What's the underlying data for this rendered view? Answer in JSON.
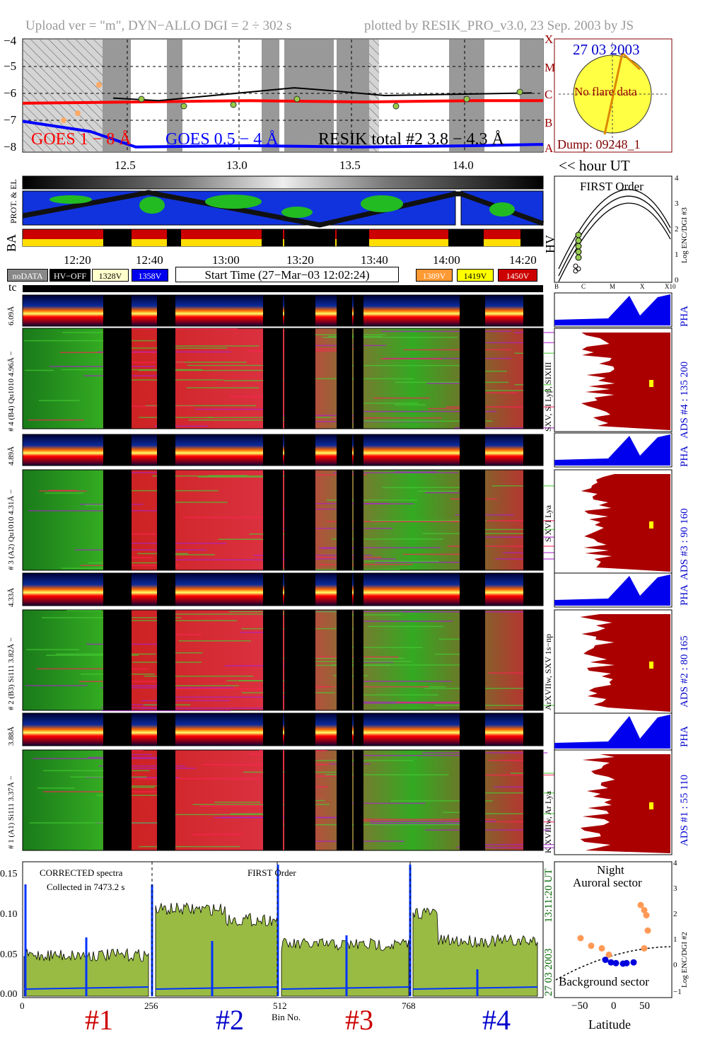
{
  "header": {
    "left": "Upload ver = \"m\", DYN−ALLO DGI =   2 ÷ 302 s",
    "right": "plotted by RESIK_PRO_v3.0, 23 Sep. 2003 by JS"
  },
  "goes": {
    "y_ticks": [
      "−4",
      "−5",
      "−6",
      "−7",
      "−8"
    ],
    "class_labels": [
      "X",
      "M",
      "C",
      "B",
      "A"
    ],
    "x_ticks": [
      "12.5",
      "13.0",
      "13.5",
      "14.0"
    ],
    "legend": [
      {
        "text": "GOES 1 − 8 Å",
        "color": "#ff0000"
      },
      {
        "text": "GOES 0.5 − 4 Å",
        "color": "#0000ff"
      },
      {
        "text": "RESIK total #2  3.8 − 4.3 Å",
        "color": "#000000"
      }
    ],
    "hour_label": "<< hour UT"
  },
  "sun": {
    "date": "27 03 2003",
    "status": "No flare data",
    "dump": "Dump: 09248_1"
  },
  "orbit": {
    "label_prot": "PROT. & EL",
    "label_ba": "BA",
    "label_hv": "HV",
    "time_ticks": [
      "12:20",
      "12:40",
      "13:00",
      "13:20",
      "13:40",
      "14:00",
      "14:20"
    ]
  },
  "legend_bar": {
    "items": [
      {
        "text": "noDATA",
        "bg": "#888888",
        "fg": "#ffffff"
      },
      {
        "text": "HV−OFF",
        "bg": "#000000",
        "fg": "#ffffff"
      },
      {
        "text": "1328V",
        "bg": "#ffffcc",
        "fg": "#000000"
      },
      {
        "text": "1358V",
        "bg": "#0000ee",
        "fg": "#ffffff"
      },
      {
        "text": "1389V",
        "bg": "#ff9933",
        "fg": "#ffffff"
      },
      {
        "text": "1419V",
        "bg": "#ffff00",
        "fg": "#000000"
      },
      {
        "text": "1450V",
        "bg": "#cc0000",
        "fg": "#ffffff"
      }
    ],
    "start_time": "Start Time (27−Mar−03 12:02:24)"
  },
  "first_order": {
    "title": "FIRST Order",
    "axis_label": "Log ENC/DGI #3",
    "y_ticks": [
      "0",
      "1",
      "2",
      "3",
      "4"
    ],
    "x_ticks": [
      "B",
      "C",
      "M",
      "X",
      "X10"
    ]
  },
  "tc_label": "tc",
  "channels": [
    {
      "pha_label": "6.09Å",
      "main_label": "# 4 (B4) Qu1010 4.96Å −",
      "right_label": "SXV, SI Lyβ, SIXIII",
      "ads": "ADS #4 :   135 200"
    },
    {
      "pha_label": "4.89Å",
      "main_label": "# 3 (A2) Qu1010  4.31Å −",
      "right_label": "S XVI Lya",
      "ads": "ADS #3 :    90 160"
    },
    {
      "pha_label": "4.33Å",
      "main_label": "# 2 (B3) Si111  3.82Å −",
      "right_label": "ArXVIIw, SXV 1s−np",
      "ads": "ADS #2 :    80 165"
    },
    {
      "pha_label": "3.88Å",
      "main_label": "# 1 (A1) Si111  3.37Å −",
      "right_label": "K XVIIIw, Ar Lya",
      "ads": "ADS #1 :    55 110"
    }
  ],
  "pha_tag": "PHA",
  "spectrum": {
    "legend1": "CORRECTED spectra",
    "legend2": "Collected in  7473.2 s",
    "order": "FIRST Order",
    "y_ticks": [
      "0.15",
      "0.10",
      "0.05",
      "0.00"
    ],
    "x_ticks": [
      "0",
      "256",
      "512",
      "768"
    ],
    "xlabel": "Bin No.",
    "time": "13:11:20 UT",
    "date": "27 03 2003",
    "channels": [
      {
        "text": "#1",
        "color": "#cc0000"
      },
      {
        "text": "#2",
        "color": "#0000cc"
      },
      {
        "text": "#3",
        "color": "#cc0000"
      },
      {
        "text": "#4",
        "color": "#0000cc"
      }
    ]
  },
  "latitude": {
    "title1": "Night",
    "title2": "Auroral sector",
    "bottom": "Background sector",
    "xlabel": "Latitude",
    "x_ticks": [
      "−50",
      "0",
      "50"
    ],
    "y_ticks": [
      "−1",
      "0",
      "1",
      "2",
      "3",
      "4"
    ],
    "axis_label": "Log ENC/DGI #2"
  },
  "chart_data": [
    {
      "type": "line",
      "title": "",
      "xlabel": "hour UT",
      "ylabel": "",
      "x_ticks": [
        12.5,
        13.0,
        13.5,
        14.0
      ],
      "y_ticks": [
        -4,
        -5,
        -6,
        -7,
        -8
      ],
      "ylim": [
        -8.2,
        -3.8
      ],
      "series": [
        {
          "name": "GOES 1 − 8 Å",
          "color": "#ff0000",
          "x": [
            12.0,
            12.5,
            13.0,
            13.5,
            14.0,
            14.3
          ],
          "y": [
            -6.3,
            -6.25,
            -6.2,
            -6.25,
            -6.2,
            -6.2
          ]
        },
        {
          "name": "GOES 0.5 − 4 Å",
          "color": "#0000ff",
          "x": [
            12.0,
            12.3,
            12.5,
            13.0,
            13.5,
            14.0,
            14.3
          ],
          "y": [
            -7.0,
            -7.4,
            -8.0,
            -7.95,
            -8.0,
            -7.95,
            -7.9
          ]
        },
        {
          "name": "RESIK total #2  3.8 − 4.3 Å",
          "color": "#000000",
          "x": [
            12.4,
            12.6,
            13.2,
            13.35,
            13.6,
            14.25
          ],
          "y": [
            -6.1,
            -6.2,
            -5.7,
            -5.8,
            -6.0,
            -5.9
          ]
        }
      ]
    },
    {
      "type": "line",
      "title": "FIRST Order",
      "ylabel": "Log ENC/DGI #3",
      "ylim": [
        0,
        4
      ],
      "x_ticks": [
        "B",
        "C",
        "M",
        "X",
        "X10"
      ]
    },
    {
      "type": "area",
      "title": "",
      "xlabel": "Bin No.",
      "x_ticks": [
        0,
        256,
        512,
        768
      ],
      "y_ticks": [
        0.0,
        0.05,
        0.1,
        0.15
      ],
      "ylim": [
        0,
        0.16
      ],
      "legend": [
        "CORRECTED spectra",
        "Collected in  7473.2 s"
      ]
    },
    {
      "type": "scatter",
      "title": "",
      "xlabel": "Latitude",
      "ylabel": "Log ENC/DGI #2",
      "x_ticks": [
        -50,
        0,
        50
      ],
      "y_ticks": [
        -1,
        0,
        1,
        2,
        3,
        4
      ],
      "ylim": [
        -1,
        4
      ],
      "series": [
        {
          "name": "",
          "color": "#ff9955",
          "x": [
            -45,
            -30,
            -15,
            -5,
            40,
            45,
            48,
            50,
            45
          ],
          "y": [
            1.0,
            0.7,
            0.6,
            0.35,
            2.3,
            2.1,
            1.9,
            1.3,
            0.6
          ]
        },
        {
          "name": "",
          "color": "#0000dd",
          "x": [
            -10,
            -2,
            5,
            15,
            20,
            30
          ],
          "y": [
            0.15,
            0.05,
            0.02,
            0.0,
            0.02,
            0.05
          ]
        }
      ]
    }
  ]
}
